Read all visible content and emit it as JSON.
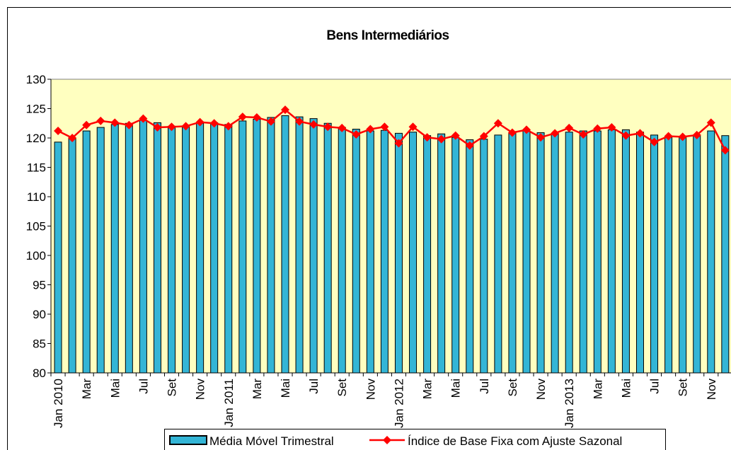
{
  "chart_data": {
    "type": "bar_line",
    "title": "Bens Intermediários",
    "categories": [
      "Jan 2010",
      null,
      "Mar",
      null,
      "Mai",
      null,
      "Jul",
      null,
      "Set",
      null,
      "Nov",
      null,
      "Jan 2011",
      null,
      "Mar",
      null,
      "Mai",
      null,
      "Jul",
      null,
      "Set",
      null,
      "Nov",
      null,
      "Jan 2012",
      null,
      "Mar",
      null,
      "Mai",
      null,
      "Jul",
      null,
      "Set",
      null,
      "Nov",
      null,
      "Jan 2013",
      null,
      "Mar",
      null,
      "Mai",
      null,
      "Jul",
      null,
      "Set",
      null,
      "Nov",
      null
    ],
    "series": [
      {
        "name": "Média Móvel Trimestral",
        "color": "#33b5d6",
        "kind": "bar",
        "values": [
          119.3,
          120.0,
          121.2,
          121.8,
          122.3,
          122.5,
          123.0,
          122.6,
          122.0,
          122.0,
          122.5,
          122.6,
          122.3,
          122.9,
          123.2,
          123.5,
          123.8,
          123.6,
          123.3,
          122.5,
          121.8,
          121.5,
          121.2,
          121.3,
          120.8,
          121.0,
          120.4,
          120.7,
          120.1,
          119.7,
          119.8,
          120.5,
          120.9,
          121.2,
          120.9,
          120.7,
          121.0,
          121.2,
          121.2,
          121.4,
          121.4,
          121.0,
          120.5,
          120.3,
          120.2,
          120.5,
          121.2,
          120.4
        ]
      },
      {
        "name": "Índice de Base Fixa com Ajuste Sazonal",
        "color": "#ff0000",
        "kind": "line",
        "values": [
          121.2,
          120.0,
          122.2,
          122.9,
          122.6,
          122.2,
          123.3,
          121.8,
          121.9,
          122.0,
          122.7,
          122.5,
          122.0,
          123.6,
          123.5,
          122.8,
          124.8,
          122.8,
          122.3,
          121.9,
          121.7,
          120.6,
          121.5,
          121.9,
          119.1,
          121.9,
          120.1,
          119.8,
          120.4,
          118.7,
          120.3,
          122.5,
          120.9,
          121.4,
          120.1,
          120.8,
          121.7,
          120.6,
          121.6,
          121.8,
          120.4,
          120.8,
          119.3,
          120.3,
          120.2,
          120.5,
          122.6,
          117.9
        ]
      }
    ],
    "ylim": [
      80,
      130
    ],
    "yticks": [
      80,
      85,
      90,
      95,
      100,
      105,
      110,
      115,
      120,
      125,
      130
    ],
    "plot_background": "#ffffc0"
  }
}
